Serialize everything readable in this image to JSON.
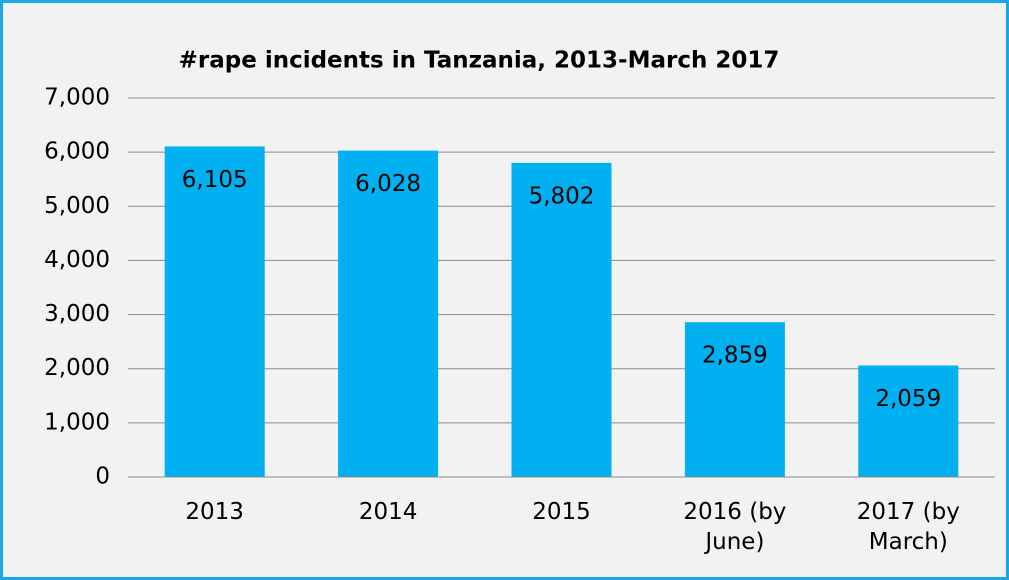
{
  "chart_data": {
    "type": "bar",
    "title": "#rape incidents in Tanzania, 2013-March 2017",
    "categories": [
      "2013",
      "2014",
      "2015",
      "2016 (by June)",
      "2017 (by March)"
    ],
    "values": [
      6105,
      6028,
      5802,
      2859,
      2059
    ],
    "value_labels": [
      "6,105",
      "6,028",
      "5,802",
      "2,859",
      "2,059"
    ],
    "color": "#00b0f0",
    "ylim": [
      0,
      7000
    ],
    "yticks": [
      0,
      {
        "value": 1000,
        "label": "1,000"
      },
      {
        "value": 2000,
        "label": "2,000"
      },
      {
        "value": 3000,
        "label": "3,000"
      },
      {
        "value": 4000,
        "label": "4,000"
      },
      {
        "value": 5000,
        "label": "5,000"
      },
      {
        "value": 6000,
        "label": "6,000"
      },
      {
        "value": 7000,
        "label": "7,000"
      }
    ],
    "grid": true
  }
}
